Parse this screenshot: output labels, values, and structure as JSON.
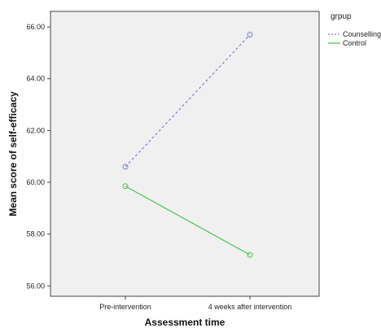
{
  "chart_data": {
    "type": "line",
    "xlabel": "Assessment time",
    "ylabel": "Mean score of self-efficacy",
    "categories": [
      "Pre-intervention",
      "4 weeks after intervention"
    ],
    "ylim": [
      55.6,
      66.6
    ],
    "yticks": [
      56,
      58,
      60,
      62,
      64,
      66
    ],
    "ytick_labels": [
      "56.00",
      "58.00",
      "60.00",
      "62.00",
      "64.00",
      "66.00"
    ],
    "grid": false,
    "legend": {
      "title": "grpup",
      "placement": "top-right"
    },
    "series": [
      {
        "name": "Counselling",
        "values": [
          60.6,
          65.7
        ],
        "color": "#7a7fc9",
        "style": "dashed"
      },
      {
        "name": "Control",
        "values": [
          59.85,
          57.2
        ],
        "color": "#4cc24c",
        "style": "solid"
      }
    ]
  },
  "colors": {
    "plot_background": "#f0f0f0"
  }
}
